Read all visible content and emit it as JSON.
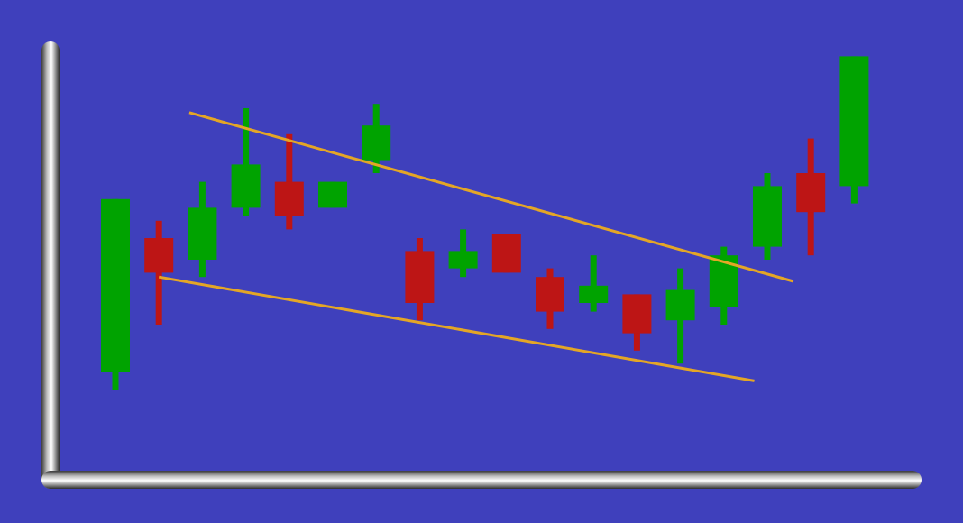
{
  "chart_data": {
    "type": "candlestick",
    "title": "",
    "xlabel": "",
    "ylabel": "",
    "ylim": [
      0,
      100
    ],
    "grid": false,
    "legend": "none",
    "candles": [
      {
        "open": 24,
        "close": 64,
        "high": 64,
        "low": 20
      },
      {
        "open": 55,
        "close": 47,
        "high": 59,
        "low": 35
      },
      {
        "open": 50,
        "close": 62,
        "high": 68,
        "low": 46
      },
      {
        "open": 62,
        "close": 72,
        "high": 85,
        "low": 60
      },
      {
        "open": 68,
        "close": 60,
        "high": 79,
        "low": 57
      },
      {
        "open": 62,
        "close": 68,
        "high": 68,
        "low": 62
      },
      {
        "open": 73,
        "close": 81,
        "high": 86,
        "low": 70
      },
      {
        "open": 52,
        "close": 40,
        "high": 55,
        "low": 36
      },
      {
        "open": 48,
        "close": 52,
        "high": 57,
        "low": 46
      },
      {
        "open": 56,
        "close": 47,
        "high": 56,
        "low": 47
      },
      {
        "open": 46,
        "close": 38,
        "high": 48,
        "low": 34
      },
      {
        "open": 40,
        "close": 44,
        "high": 51,
        "low": 38
      },
      {
        "open": 42,
        "close": 33,
        "high": 42,
        "low": 29
      },
      {
        "open": 36,
        "close": 43,
        "high": 48,
        "low": 26
      },
      {
        "open": 39,
        "close": 51,
        "high": 53,
        "low": 35
      },
      {
        "open": 53,
        "close": 67,
        "high": 70,
        "low": 50
      },
      {
        "open": 70,
        "close": 61,
        "high": 78,
        "low": 51
      },
      {
        "open": 67,
        "close": 97,
        "high": 97,
        "low": 63
      }
    ],
    "trendlines": [
      {
        "name": "upper-trendline",
        "x_start": 1.7,
        "y_start": 84,
        "x_end": 15.6,
        "y_end": 45
      },
      {
        "name": "lower-trendline",
        "x_start": 1.0,
        "y_start": 46,
        "x_end": 14.7,
        "y_end": 22
      }
    ]
  },
  "colors": {
    "background": "#3f40bc",
    "bullish": "#00a300",
    "bearish": "#bd1515",
    "trendline": "#e4a626",
    "axis": "#c8c8c8"
  }
}
